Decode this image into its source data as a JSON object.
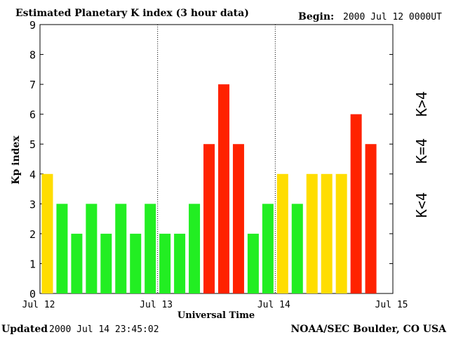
{
  "header": {
    "title": "Estimated Planetary K index (3 hour data)",
    "begin_label": "Begin:",
    "begin_value": "2000 Jul 12 0000UT"
  },
  "footer": {
    "updated_label": "Updated",
    "updated_value": "2000 Jul 14 23:45:02",
    "source": "NOAA/SEC Boulder, CO USA"
  },
  "legend": {
    "low": "K<4",
    "mid": "K=4",
    "high": "K>4"
  },
  "colors": {
    "low": "#22ee22",
    "mid": "#ffdd00",
    "high": "#ff2200"
  },
  "chart_data": {
    "type": "bar",
    "title": "Estimated Planetary K index (3 hour data)",
    "xlabel": "Universal Time",
    "ylabel": "Kp index",
    "ylim": [
      0,
      9
    ],
    "yticks": [
      0,
      1,
      2,
      3,
      4,
      5,
      6,
      7,
      8,
      9
    ],
    "xtick_labels": [
      "Jul 12",
      "Jul 13",
      "Jul 14",
      "Jul 15"
    ],
    "values": [
      4,
      3,
      2,
      3,
      2,
      3,
      2,
      3,
      2,
      2,
      3,
      5,
      7,
      5,
      2,
      3,
      4,
      3,
      4,
      4,
      4,
      6,
      5
    ],
    "grid": false
  }
}
